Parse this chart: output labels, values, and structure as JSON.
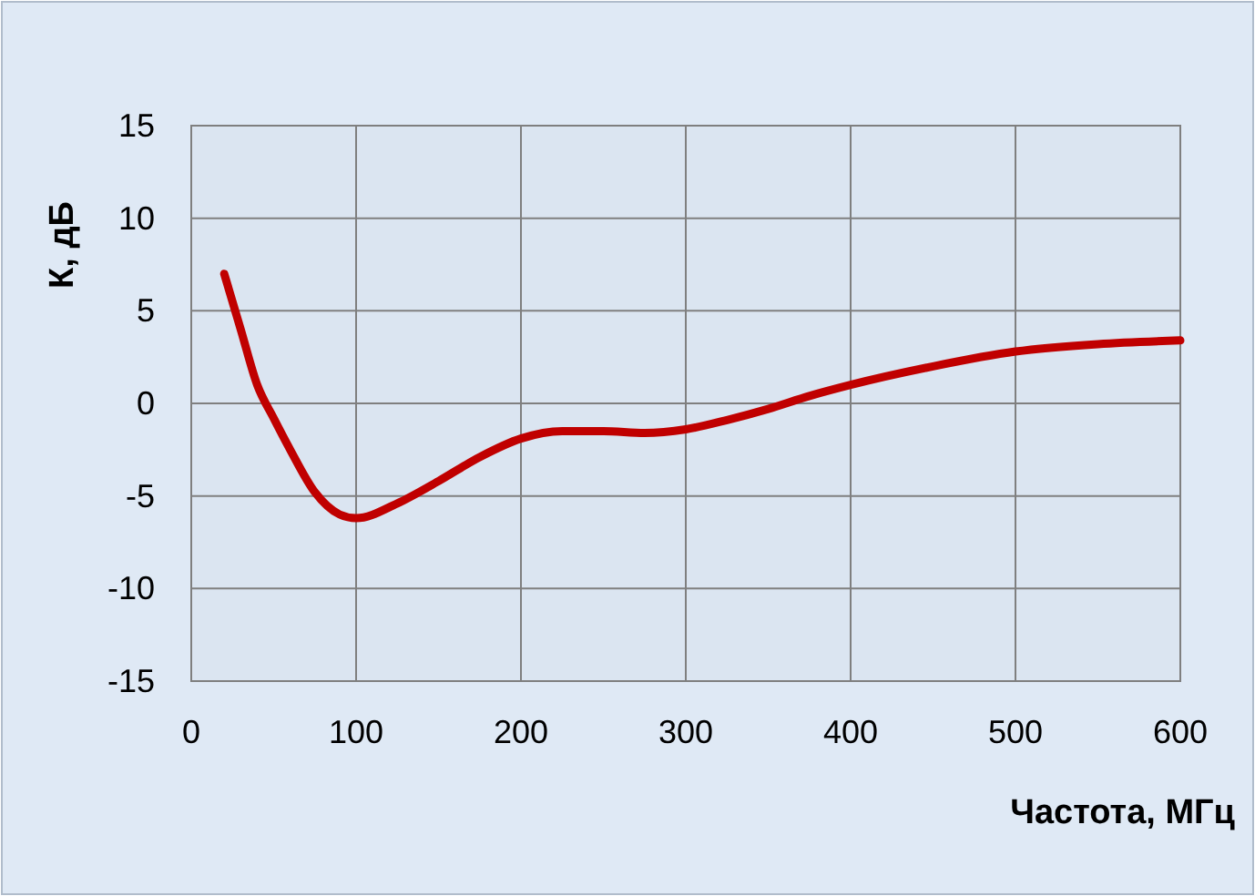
{
  "chart_data": {
    "type": "line",
    "xlabel": "Частота, МГц",
    "ylabel": "К, дБ",
    "x": [
      20,
      30,
      40,
      50,
      60,
      75,
      90,
      100,
      125,
      150,
      175,
      200,
      225,
      250,
      275,
      300,
      325,
      350,
      375,
      400,
      450,
      500,
      550,
      600
    ],
    "series": [
      {
        "color": "#c00000",
        "values": [
          7,
          4,
          1,
          -0.8,
          -2.5,
          -4.8,
          -6,
          -6.2,
          -5.4,
          -4.2,
          -2.9,
          -1.9,
          -1.5,
          -1.5,
          -1.6,
          -1.4,
          -0.9,
          -0.3,
          0.4,
          1,
          2,
          2.8,
          3.2,
          3.4
        ]
      }
    ],
    "xlim": [
      0,
      600
    ],
    "xticks": [
      0,
      100,
      200,
      300,
      400,
      500,
      600
    ],
    "ylim": [
      -15,
      15
    ],
    "yticks": [
      -15,
      -10,
      -5,
      0,
      5,
      10,
      15
    ],
    "grid": true,
    "marker": "none",
    "line_style": "solid"
  }
}
